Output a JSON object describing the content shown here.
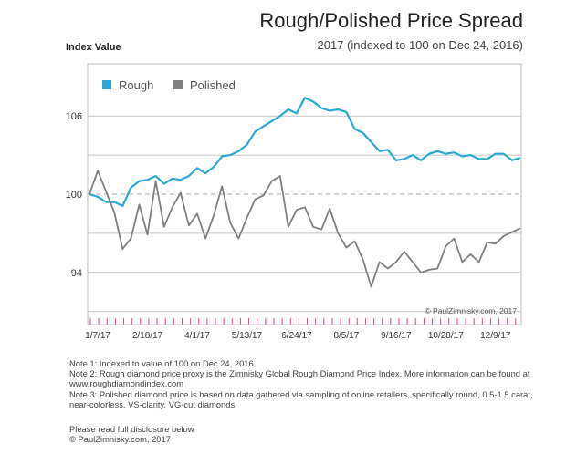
{
  "header": {
    "title": "Rough/Polished Price Spread",
    "subtitle": "2017 (indexed to 100 on Dec 24, 2016)"
  },
  "copyright_in_chart": "© PaulZimnisky.com, 2017",
  "notes": [
    "Note 1: Indexed to value of 100 on Dec 24, 2016",
    "Note 2: Rough diamond price proxy is the Zimnisky Global Rough Diamond Price Index. More information can be found at www.roughdiamondindex.com",
    "Note 3: Polished diamond price is based on data gathered via sampling of online retailers, specifically round, 0.5-1.5 carat, near-colorless, VS-clarity, VG-cut diamonds"
  ],
  "disclosure": [
    "Please read full disclosure below",
    "© PaulZimnisky.com, 2017"
  ],
  "chart_data": {
    "type": "line",
    "title": "Rough/Polished Price Spread",
    "subtitle": "2017 (indexed to 100 on Dec 24, 2016)",
    "ylabel": "Index Value",
    "xlabel": "",
    "ylim": [
      90,
      110
    ],
    "yticks": [
      94,
      100,
      106
    ],
    "reference_line": 100,
    "x_tick_labels": [
      "1/7/17",
      "2/18/17",
      "4/1/17",
      "5/13/17",
      "6/24/17",
      "8/5/17",
      "9/16/17",
      "10/28/17",
      "12/9/17"
    ],
    "x_ticks_count": 52,
    "legend": "top-left",
    "grid": true,
    "colors": {
      "rough": "#2aa9d2",
      "polished": "#808080",
      "reference": "#aaaaaa",
      "tick": "#e0479a"
    },
    "series": [
      {
        "name": "Rough",
        "values": [
          100.0,
          99.8,
          99.4,
          99.4,
          99.1,
          100.5,
          101.0,
          101.1,
          101.4,
          100.8,
          101.2,
          101.1,
          101.4,
          102.0,
          101.6,
          102.1,
          102.9,
          103.0,
          103.3,
          103.8,
          104.8,
          105.2,
          105.6,
          106.0,
          106.5,
          106.2,
          107.4,
          107.1,
          106.6,
          106.4,
          106.5,
          106.3,
          105.0,
          104.7,
          104.0,
          103.3,
          103.4,
          102.6,
          102.7,
          103.0,
          102.6,
          103.1,
          103.3,
          103.1,
          103.2,
          102.9,
          103.0,
          102.7,
          102.7,
          103.1,
          103.1,
          102.6,
          102.8
        ]
      },
      {
        "name": "Polished",
        "values": [
          100.0,
          101.8,
          100.2,
          98.6,
          95.8,
          96.6,
          99.2,
          96.9,
          101.0,
          97.5,
          99.0,
          100.1,
          97.6,
          98.5,
          96.6,
          98.4,
          100.6,
          97.8,
          96.6,
          98.2,
          99.6,
          99.9,
          101.0,
          101.4,
          97.5,
          98.8,
          99.0,
          97.5,
          97.3,
          98.9,
          97.0,
          95.9,
          96.4,
          95.0,
          92.9,
          94.8,
          94.3,
          94.8,
          95.6,
          94.8,
          94.0,
          94.2,
          94.3,
          96.0,
          96.6,
          94.8,
          95.4,
          94.8,
          96.3,
          96.2,
          96.8,
          97.1,
          97.4
        ]
      }
    ]
  }
}
